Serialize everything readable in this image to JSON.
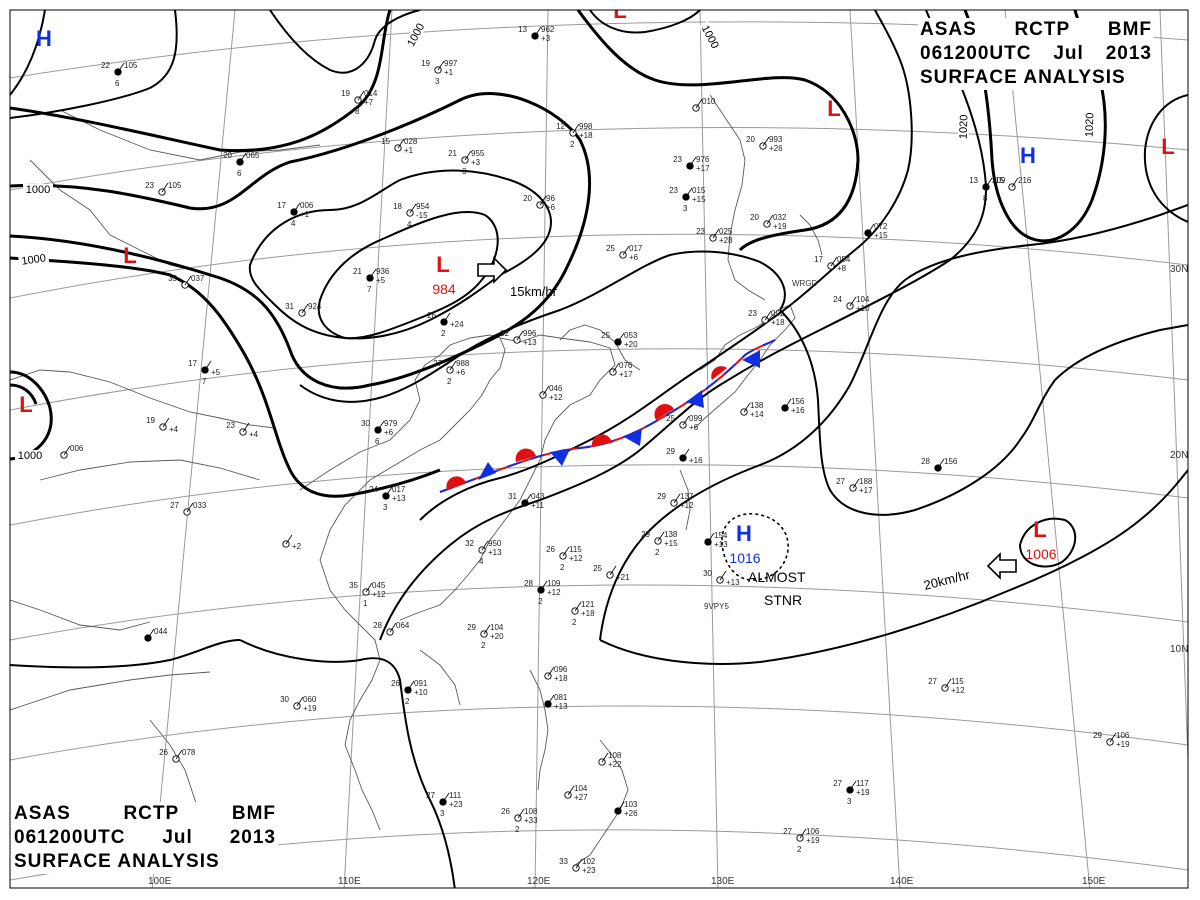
{
  "header": {
    "line1": [
      "ASAS",
      "RCTP",
      "BMF"
    ],
    "line2": [
      "061200UTC",
      "Jul",
      "2013"
    ],
    "line3": "SURFACE ANALYSIS"
  },
  "colors": {
    "high": "#1030e0",
    "low": "#e01010",
    "warm_front": "#e01010",
    "cold_front": "#1030e0",
    "contour": "#000000",
    "grid": "#9a9a9a",
    "coast": "#5a5a5a"
  },
  "isobar_labels": [
    "1000",
    "1000",
    "1000",
    "1000",
    "1000",
    "1020",
    "1020"
  ],
  "pressure_centers": [
    {
      "type": "H",
      "value": ""
    },
    {
      "type": "L",
      "value": ""
    },
    {
      "type": "L",
      "value": ""
    },
    {
      "type": "L",
      "value": ""
    },
    {
      "type": "H",
      "value": ""
    },
    {
      "type": "L",
      "value": ""
    },
    {
      "type": "L",
      "value": ""
    },
    {
      "type": "L",
      "value": "984"
    },
    {
      "type": "H",
      "value": "1016"
    },
    {
      "type": "L",
      "value": "1006"
    }
  ],
  "motion": [
    {
      "speed": "15km/hr"
    },
    {
      "speed": "20km/hr"
    }
  ],
  "stationary_note": [
    "ALMOST",
    "STNR"
  ],
  "lat_labels": [
    "30N",
    "20N",
    "10N"
  ],
  "lon_labels": [
    "100E",
    "110E",
    "120E",
    "130E",
    "140E",
    "150E"
  ],
  "ship_ids": [
    "WRGD",
    "9VPY5"
  ],
  "stations": [
    {
      "t": "22",
      "p": "105",
      "m": "",
      "v": "6"
    },
    {
      "t": "19",
      "p": "014",
      "m": "+7",
      "v": "8"
    },
    {
      "t": "19",
      "p": "997",
      "m": "+1",
      "v": "3"
    },
    {
      "t": "13",
      "p": "962",
      "m": "+3",
      "v": ""
    },
    {
      "t": "12",
      "p": "998",
      "m": "+18",
      "v": "2"
    },
    {
      "t": "15",
      "p": "028",
      "m": "+1",
      "v": ""
    },
    {
      "t": "20",
      "p": "065",
      "m": "",
      "v": "6"
    },
    {
      "t": "21",
      "p": "955",
      "m": "+3",
      "v": "3"
    },
    {
      "t": "23",
      "p": "105",
      "m": "",
      "v": ""
    },
    {
      "t": "17",
      "p": "006",
      "m": "+1",
      "v": "4"
    },
    {
      "t": "18",
      "p": "954",
      "m": "-15",
      "v": "4"
    },
    {
      "t": "20",
      "p": "96",
      "m": "+6",
      "v": ""
    },
    {
      "t": "21",
      "p": "936",
      "m": "+5",
      "v": "7"
    },
    {
      "t": "35",
      "p": "037",
      "m": "",
      "v": ""
    },
    {
      "t": "31",
      "p": "924",
      "m": "",
      "v": ""
    },
    {
      "t": "26",
      "p": "",
      "m": "+24",
      "v": "2"
    },
    {
      "t": "32",
      "p": "996",
      "m": "+13",
      "v": ""
    },
    {
      "t": "27",
      "p": "988",
      "m": "+6",
      "v": "2"
    },
    {
      "t": "17",
      "p": "",
      "m": "+5",
      "v": "7"
    },
    {
      "t": "19",
      "p": "",
      "m": "+4",
      "v": ""
    },
    {
      "t": "23",
      "p": "",
      "m": "+4",
      "v": ""
    },
    {
      "t": "30",
      "p": "979",
      "m": "+6",
      "v": "6"
    },
    {
      "t": "",
      "p": "006",
      "m": "",
      "v": ""
    },
    {
      "t": "27",
      "p": "033",
      "m": "",
      "v": ""
    },
    {
      "t": "24",
      "p": "017",
      "m": "+13",
      "v": "3"
    },
    {
      "t": "32",
      "p": "950",
      "m": "+13",
      "v": "4"
    },
    {
      "t": "",
      "p": "",
      "m": "+2",
      "v": ""
    },
    {
      "t": "31",
      "p": "043",
      "m": "+11",
      "v": ""
    },
    {
      "t": "35",
      "p": "045",
      "m": "+12",
      "v": "1"
    },
    {
      "t": "28",
      "p": "064",
      "m": "",
      "v": ""
    },
    {
      "t": "",
      "p": "044",
      "m": "",
      "v": ""
    },
    {
      "t": "29",
      "p": "104",
      "m": "+20",
      "v": "2"
    },
    {
      "t": "26",
      "p": "115",
      "m": "+12",
      "v": "2"
    },
    {
      "t": "28",
      "p": "109",
      "m": "+12",
      "v": "2"
    },
    {
      "t": "",
      "p": "121",
      "m": "+18",
      "v": "2"
    },
    {
      "t": "25",
      "p": "",
      "m": "+21",
      "v": ""
    },
    {
      "t": "26",
      "p": "091",
      "m": "+10",
      "v": "2"
    },
    {
      "t": "30",
      "p": "060",
      "m": "+19",
      "v": ""
    },
    {
      "t": "",
      "p": "096",
      "m": "+18",
      "v": ""
    },
    {
      "t": "",
      "p": "081",
      "m": "+13",
      "v": ""
    },
    {
      "t": "26",
      "p": "078",
      "m": "",
      "v": ""
    },
    {
      "t": "",
      "p": "108",
      "m": "+22",
      "v": ""
    },
    {
      "t": "27",
      "p": "111",
      "m": "+23",
      "v": "3"
    },
    {
      "t": "26",
      "p": "108",
      "m": "+33",
      "v": "2"
    },
    {
      "t": "",
      "p": "104",
      "m": "+27",
      "v": ""
    },
    {
      "t": "",
      "p": "103",
      "m": "+26",
      "v": ""
    },
    {
      "t": "33",
      "p": "102",
      "m": "+23",
      "v": ""
    },
    {
      "t": "25",
      "p": "017",
      "m": "+6",
      "v": ""
    },
    {
      "t": "23",
      "p": "015",
      "m": "+15",
      "v": "3"
    },
    {
      "t": "23",
      "p": "025",
      "m": "+28",
      "v": ""
    },
    {
      "t": "20",
      "p": "032",
      "m": "+19",
      "v": ""
    },
    {
      "t": "23",
      "p": "976",
      "m": "+17",
      "v": ""
    },
    {
      "t": "20",
      "p": "993",
      "m": "+26",
      "v": ""
    },
    {
      "t": "",
      "p": "010",
      "m": "",
      "v": ""
    },
    {
      "t": "13",
      "p": "209",
      "m": "",
      "v": "8"
    },
    {
      "t": "15",
      "p": "216",
      "m": "",
      "v": ""
    },
    {
      "t": "17",
      "p": "054",
      "m": "+8",
      "v": ""
    },
    {
      "t": "",
      "p": "072",
      "m": "+15",
      "v": ""
    },
    {
      "t": "24",
      "p": "104",
      "m": "+10",
      "v": ""
    },
    {
      "t": "23",
      "p": "092",
      "m": "+18",
      "v": ""
    },
    {
      "t": "25",
      "p": "053",
      "m": "+20",
      "v": ""
    },
    {
      "t": "",
      "p": "076",
      "m": "+17",
      "v": ""
    },
    {
      "t": "",
      "p": "046",
      "m": "+12",
      "v": ""
    },
    {
      "t": "",
      "p": "156",
      "m": "+16",
      "v": ""
    },
    {
      "t": "",
      "p": "138",
      "m": "+14",
      "v": ""
    },
    {
      "t": "25",
      "p": "099",
      "m": "+6",
      "v": ""
    },
    {
      "t": "29",
      "p": "",
      "m": "+16",
      "v": ""
    },
    {
      "t": "29",
      "p": "137",
      "m": "+12",
      "v": ""
    },
    {
      "t": "29",
      "p": "138",
      "m": "+15",
      "v": "2"
    },
    {
      "t": "",
      "p": "154",
      "m": "+13",
      "v": ""
    },
    {
      "t": "30",
      "p": "",
      "m": "+13",
      "v": ""
    },
    {
      "t": "27",
      "p": "188",
      "m": "+17",
      "v": ""
    },
    {
      "t": "28",
      "p": "156",
      "m": "",
      "v": ""
    },
    {
      "t": "27",
      "p": "115",
      "m": "+12",
      "v": ""
    },
    {
      "t": "29",
      "p": "106",
      "m": "+19",
      "v": ""
    },
    {
      "t": "27",
      "p": "117",
      "m": "+19",
      "v": "3"
    },
    {
      "t": "27",
      "p": "106",
      "m": "+19",
      "v": "2"
    }
  ]
}
